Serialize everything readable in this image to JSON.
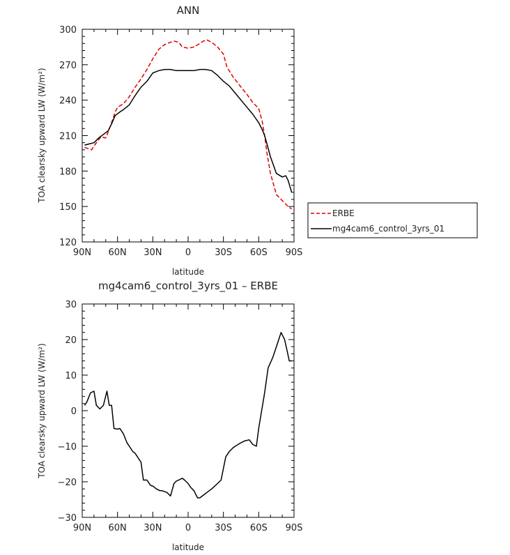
{
  "chart_data": [
    {
      "type": "line",
      "title": "ANN",
      "xlabel": "latitude",
      "ylabel": "TOA clearsky upward LW (W/m²)",
      "xlim": [
        -90,
        90
      ],
      "ylim": [
        120,
        300
      ],
      "yticks": [
        120,
        150,
        180,
        210,
        240,
        270,
        300
      ],
      "xticks": [
        -90,
        -60,
        -30,
        0,
        30,
        60,
        90
      ],
      "xtick_labels": [
        "90N",
        "60N",
        "30N",
        "0",
        "30S",
        "60S",
        "90S"
      ],
      "legend": "right",
      "series": [
        {
          "name": "ERBE",
          "color": "#dd0000",
          "dash": true,
          "x": [
            -88,
            -85,
            -82,
            -78,
            -74,
            -70,
            -66,
            -62,
            -60,
            -55,
            -50,
            -45,
            -40,
            -35,
            -30,
            -25,
            -20,
            -15,
            -12,
            -8,
            -5,
            0,
            5,
            10,
            13,
            16,
            20,
            25,
            30,
            33,
            38,
            45,
            50,
            55,
            60,
            63,
            65,
            67,
            70,
            75,
            80,
            85,
            88
          ],
          "y": [
            200,
            199,
            198,
            204,
            209,
            208,
            218,
            230,
            234,
            237,
            243,
            251,
            258,
            266,
            275,
            283,
            287,
            289,
            290,
            289,
            285,
            284,
            285,
            288,
            290,
            291,
            289,
            285,
            279,
            268,
            260,
            251,
            245,
            238,
            233,
            222,
            210,
            195,
            178,
            160,
            155,
            150,
            148
          ]
        },
        {
          "name": "mg4cam6_control_3yrs_01",
          "color": "#000000",
          "dash": false,
          "x": [
            -88,
            -84,
            -80,
            -76,
            -72,
            -68,
            -65,
            -62,
            -58,
            -55,
            -50,
            -45,
            -40,
            -35,
            -30,
            -25,
            -20,
            -15,
            -10,
            -5,
            0,
            5,
            10,
            15,
            20,
            25,
            30,
            35,
            40,
            45,
            50,
            55,
            60,
            63,
            65,
            67,
            70,
            75,
            80,
            83,
            85,
            88
          ],
          "y": [
            202,
            203,
            204,
            208,
            211,
            214,
            220,
            227,
            230,
            232,
            236,
            244,
            251,
            256,
            263,
            265,
            266,
            266,
            265,
            265,
            265,
            265,
            266,
            266,
            265,
            261,
            256,
            252,
            246,
            240,
            234,
            228,
            221,
            215,
            210,
            203,
            192,
            178,
            175,
            176,
            172,
            162
          ]
        }
      ]
    },
    {
      "type": "line",
      "title": "mg4cam6_control_3yrs_01 – ERBE",
      "xlabel": "latitude",
      "ylabel": "TOA clearsky upward LW (W/m²)",
      "xlim": [
        -90,
        90
      ],
      "ylim": [
        -30,
        30
      ],
      "yticks": [
        -30,
        -20,
        -10,
        0,
        10,
        20,
        30
      ],
      "xticks": [
        -90,
        -60,
        -30,
        0,
        30,
        60,
        90
      ],
      "xtick_labels": [
        "90N",
        "60N",
        "30N",
        "0",
        "30S",
        "60S",
        "90S"
      ],
      "series": [
        {
          "name": "mg4cam6_control_3yrs_01 – ERBE",
          "color": "#000000",
          "dash": false,
          "x": [
            -88,
            -86,
            -83,
            -80,
            -78,
            -75,
            -72,
            -69,
            -67,
            -65,
            -63,
            -60,
            -58,
            -55,
            -52,
            -50,
            -47,
            -45,
            -40,
            -38,
            -35,
            -32,
            -30,
            -27,
            -24,
            -22,
            -18,
            -15,
            -12,
            -10,
            -8,
            -5,
            -3,
            0,
            2,
            5,
            8,
            10,
            12,
            14,
            16,
            20,
            25,
            28,
            32,
            35,
            38,
            40,
            45,
            48,
            52,
            55,
            58,
            60,
            62,
            65,
            68,
            72,
            76,
            79,
            82,
            84,
            86,
            88
          ],
          "y": [
            1.5,
            2.5,
            5,
            5.5,
            1.5,
            0.5,
            1.5,
            5.5,
            1.5,
            1.5,
            -5,
            -5.2,
            -5,
            -6.5,
            -9,
            -10,
            -11.5,
            -12,
            -14.5,
            -19.5,
            -19.5,
            -21,
            -21.2,
            -22,
            -22.5,
            -22.5,
            -23,
            -24,
            -20.5,
            -19.8,
            -19.5,
            -19,
            -19.5,
            -20.5,
            -21.5,
            -22.5,
            -24.5,
            -24.5,
            -24,
            -23.5,
            -23,
            -22,
            -20.5,
            -19.5,
            -13,
            -11.5,
            -10.5,
            -10,
            -9,
            -8.5,
            -8.2,
            -9.5,
            -10,
            -5,
            -1,
            5,
            12,
            15,
            19,
            22,
            20,
            17,
            14,
            14
          ]
        }
      ]
    }
  ]
}
